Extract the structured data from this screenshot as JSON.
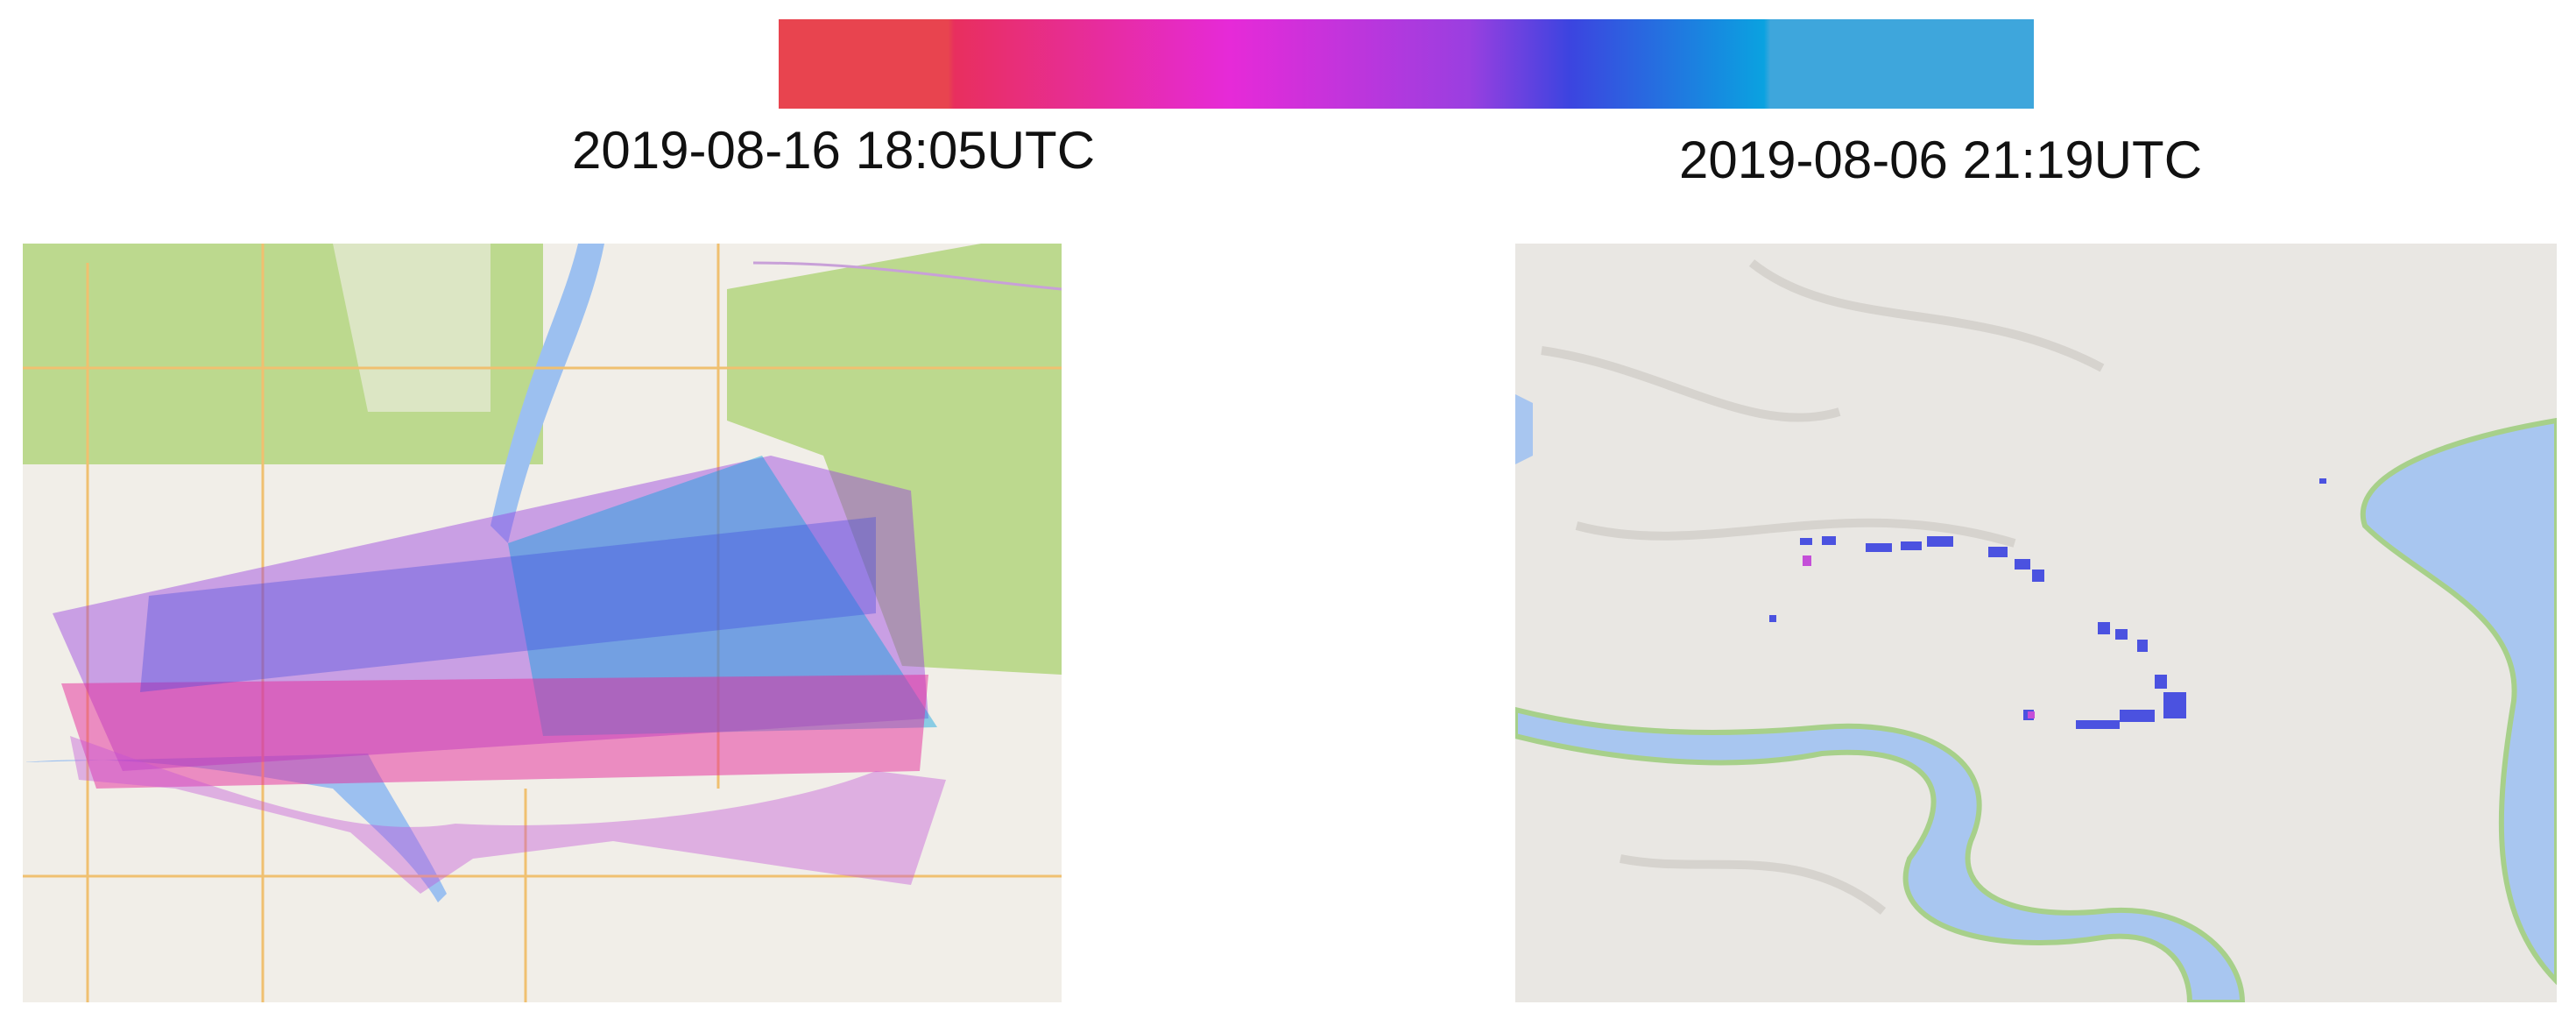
{
  "colorbar": {
    "left_label": "2019-08-16 18:05UTC",
    "right_label": "2019-08-06 21:19UTC"
  }
}
